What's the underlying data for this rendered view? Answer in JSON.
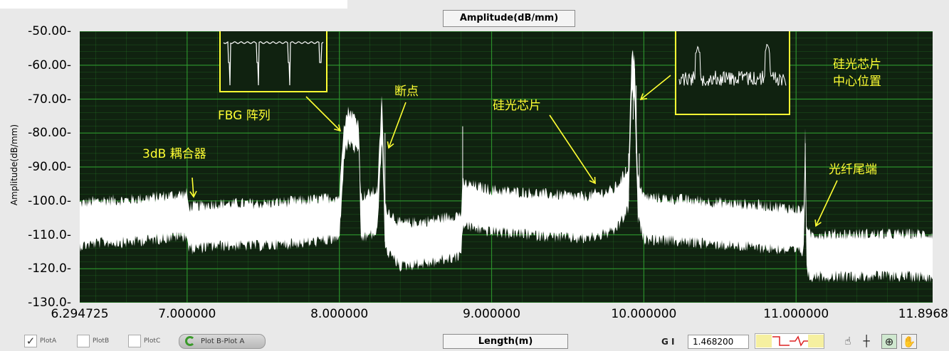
{
  "chart_data": {
    "type": "line",
    "title": "Amplitude(dB/mm)",
    "xlabel": "Length(m)",
    "ylabel": "Amplitude(dB/mm)",
    "xlim": [
      6.294725,
      11.8968
    ],
    "ylim": [
      -130,
      -50
    ],
    "x_ticks": [
      "6.294725",
      "7.000000",
      "8.000000",
      "9.000000",
      "10.000000",
      "11.000000",
      "11.8968"
    ],
    "y_ticks": [
      "-50.00",
      "-60.00",
      "-70.00",
      "-80.00",
      "-90.00",
      "-100.0",
      "-110.0",
      "-120.0",
      "-130.0"
    ],
    "grid": true,
    "series": [
      {
        "name": "PlotA",
        "color": "#ffffff",
        "x": [
          6.2947,
          6.45,
          6.6,
          6.8,
          7.0,
          7.01,
          7.2,
          7.5,
          7.8,
          8.0,
          8.03,
          8.06,
          8.1,
          8.13,
          8.14,
          8.2,
          8.25,
          8.28,
          8.3,
          8.4,
          8.6,
          8.8,
          8.81,
          9.0,
          9.3,
          9.6,
          9.8,
          9.85,
          9.9,
          9.92,
          9.94,
          9.96,
          10.0,
          10.3,
          10.6,
          10.9,
          11.05,
          11.06,
          11.07,
          11.1,
          11.4,
          11.7,
          11.8968
        ],
        "y": [
          -107,
          -106,
          -106,
          -105,
          -104,
          -108,
          -107,
          -107,
          -106,
          -105,
          -82,
          -78,
          -80,
          -82,
          -105,
          -104,
          -103,
          -74,
          -108,
          -113,
          -112,
          -110,
          -101,
          -103,
          -104,
          -105,
          -103,
          -100,
          -96,
          -61,
          -65,
          -99,
          -105,
          -106,
          -107,
          -108,
          -109,
          -84,
          -116,
          -116,
          -116,
          -116,
          -116
        ]
      }
    ],
    "annotations": [
      {
        "text": "3dB 耦合器",
        "x": 7.0,
        "y": -101
      },
      {
        "text": "FBG 阵列",
        "x": 8.05,
        "y": -77
      },
      {
        "text": "断点",
        "x": 8.28,
        "y": -88
      },
      {
        "text": "硅光芯片",
        "x": 9.75,
        "y": -98
      },
      {
        "text": "硅光芯片\n中心位置",
        "x": 9.95,
        "y": -72
      },
      {
        "text": "光纤尾端",
        "x": 11.06,
        "y": -107
      }
    ],
    "legend": {
      "placement": "bottom-left",
      "entries": [
        "PlotA",
        "PlotB",
        "PlotC"
      ]
    }
  },
  "annotations_text": {
    "coupler": "3dB 耦合器",
    "fbg": "FBG 阵列",
    "breakpoint": "断点",
    "chip": "硅光芯片",
    "chip_center_line1": "硅光芯片",
    "chip_center_line2": "中心位置",
    "fiber_end": "光纤尾端"
  },
  "controls": {
    "plot_a_label": "PlotA",
    "plot_b_label": "PlotB",
    "plot_c_label": "PlotC",
    "plot_a_checked": true,
    "diff_button": "Plot B-Plot A",
    "length_label": "Length(m)",
    "g_label": "G I",
    "g_value": "1.468200"
  },
  "colors": {
    "plot_bg": "#102210",
    "grid": "#2f9a2f",
    "trace": "#ffffff",
    "annotation": "#ffff33"
  },
  "icons": [
    "hand-cursor-icon",
    "crosshair-icon",
    "zoom-icon",
    "pan-hand-icon"
  ]
}
